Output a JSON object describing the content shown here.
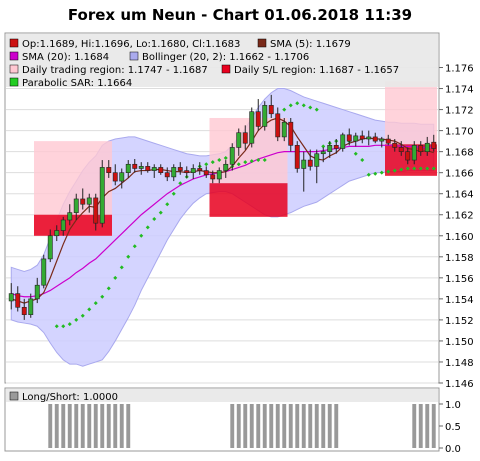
{
  "title": "Forex um Neun - Chart 01.06.2018 11:39",
  "colors": {
    "bollinger_fill": "#ccccff",
    "bollinger_edge": "#a9a9ee",
    "daily_region_fill": "#ffc8d2",
    "sl_region_fill": "#e8001e",
    "sma5": "#7a2a1a",
    "sma20": "#cc00cc",
    "parabolic_sar": "#22bb22",
    "candle_up": "#33aa33",
    "candle_down": "#cc1111",
    "longshort_bar": "#999999",
    "grid": "#dddddd"
  },
  "legend": {
    "ohlc": "Op:1.1689, Hi:1.1696, Lo:1.1680, Cl:1.1683",
    "sma5": "SMA (5): 1.1679",
    "sma20": "SMA (20): 1.1684",
    "bollinger": "Bollinger (20, 2): 1.1662 - 1.1706",
    "daily_region": "Daily trading region: 1.1747 - 1.1687",
    "daily_sl": "Daily S/L region: 1.1687 - 1.1657",
    "sar": "Parabolic SAR: 1.1664"
  },
  "lower_panel": {
    "legend": "Long/Short: 1.0000",
    "ticks": [
      "1.0",
      "0.5",
      "0.0"
    ]
  },
  "chart_data": {
    "type": "candlestick",
    "ylim": [
      1.146,
      1.177
    ],
    "yticks": [
      "1.146",
      "1.148",
      "1.150",
      "1.152",
      "1.154",
      "1.156",
      "1.158",
      "1.160",
      "1.162",
      "1.164",
      "1.166",
      "1.168",
      "1.170",
      "1.172",
      "1.174",
      "1.176"
    ],
    "candles": [
      [
        1.1538,
        1.1555,
        1.153,
        1.1545
      ],
      [
        1.1545,
        1.1552,
        1.1528,
        1.1532
      ],
      [
        1.1532,
        1.154,
        1.152,
        1.1525
      ],
      [
        1.1525,
        1.1545,
        1.1522,
        1.154
      ],
      [
        1.154,
        1.156,
        1.1536,
        1.1553
      ],
      [
        1.1553,
        1.1582,
        1.155,
        1.1578
      ],
      [
        1.1578,
        1.1606,
        1.1575,
        1.16
      ],
      [
        1.16,
        1.161,
        1.1595,
        1.1605
      ],
      [
        1.1605,
        1.1618,
        1.16,
        1.1615
      ],
      [
        1.1615,
        1.163,
        1.161,
        1.1622
      ],
      [
        1.1622,
        1.164,
        1.1615,
        1.1635
      ],
      [
        1.1635,
        1.1645,
        1.1625,
        1.163
      ],
      [
        1.163,
        1.164,
        1.1622,
        1.1636
      ],
      [
        1.1636,
        1.164,
        1.1605,
        1.1612
      ],
      [
        1.1612,
        1.1672,
        1.1608,
        1.1665
      ],
      [
        1.1665,
        1.1672,
        1.1655,
        1.166
      ],
      [
        1.166,
        1.1668,
        1.1648,
        1.1652
      ],
      [
        1.1652,
        1.1664,
        1.1645,
        1.166
      ],
      [
        1.166,
        1.1672,
        1.1655,
        1.1668
      ],
      [
        1.1668,
        1.1673,
        1.166,
        1.1664
      ],
      [
        1.1664,
        1.167,
        1.1658,
        1.1666
      ],
      [
        1.1666,
        1.167,
        1.166,
        1.1662
      ],
      [
        1.1662,
        1.1668,
        1.1655,
        1.1665
      ],
      [
        1.1665,
        1.1668,
        1.1658,
        1.166
      ],
      [
        1.166,
        1.1665,
        1.1652,
        1.1656
      ],
      [
        1.1656,
        1.1668,
        1.1652,
        1.1665
      ],
      [
        1.1665,
        1.167,
        1.1658,
        1.1662
      ],
      [
        1.1662,
        1.1666,
        1.1655,
        1.166
      ],
      [
        1.166,
        1.1668,
        1.1654,
        1.1664
      ],
      [
        1.1664,
        1.167,
        1.1658,
        1.1662
      ],
      [
        1.1662,
        1.1666,
        1.1655,
        1.1658
      ],
      [
        1.1658,
        1.1662,
        1.165,
        1.1654
      ],
      [
        1.1654,
        1.1665,
        1.165,
        1.1662
      ],
      [
        1.1662,
        1.1672,
        1.1655,
        1.1668
      ],
      [
        1.1668,
        1.1688,
        1.1662,
        1.1684
      ],
      [
        1.1684,
        1.1702,
        1.1676,
        1.1698
      ],
      [
        1.1698,
        1.1705,
        1.1682,
        1.1688
      ],
      [
        1.1688,
        1.1722,
        1.1684,
        1.1718
      ],
      [
        1.1718,
        1.173,
        1.17,
        1.1704
      ],
      [
        1.1704,
        1.1728,
        1.17,
        1.1724
      ],
      [
        1.1724,
        1.1734,
        1.1712,
        1.1716
      ],
      [
        1.1716,
        1.1722,
        1.169,
        1.1694
      ],
      [
        1.1694,
        1.1712,
        1.169,
        1.1708
      ],
      [
        1.1708,
        1.1712,
        1.168,
        1.1686
      ],
      [
        1.1686,
        1.169,
        1.166,
        1.1664
      ],
      [
        1.1664,
        1.168,
        1.1642,
        1.1672
      ],
      [
        1.1672,
        1.1682,
        1.1662,
        1.1666
      ],
      [
        1.1666,
        1.1682,
        1.165,
        1.1678
      ],
      [
        1.1678,
        1.1684,
        1.167,
        1.168
      ],
      [
        1.168,
        1.169,
        1.1674,
        1.1686
      ],
      [
        1.1686,
        1.1692,
        1.1678,
        1.1683
      ],
      [
        1.1683,
        1.1698,
        1.168,
        1.1696
      ],
      [
        1.1696,
        1.1702,
        1.1686,
        1.169
      ],
      [
        1.169,
        1.1698,
        1.1685,
        1.1695
      ],
      [
        1.1695,
        1.17,
        1.1688,
        1.1692
      ],
      [
        1.1692,
        1.17,
        1.1686,
        1.1694
      ],
      [
        1.1694,
        1.1698,
        1.1688,
        1.169
      ],
      [
        1.169,
        1.1694,
        1.1684,
        1.1692
      ],
      [
        1.1692,
        1.1696,
        1.1686,
        1.1688
      ],
      [
        1.1688,
        1.1692,
        1.168,
        1.1684
      ],
      [
        1.1684,
        1.169,
        1.1676,
        1.168
      ],
      [
        1.168,
        1.1684,
        1.1668,
        1.1672
      ],
      [
        1.1672,
        1.169,
        1.1668,
        1.1686
      ],
      [
        1.1686,
        1.169,
        1.1676,
        1.168
      ],
      [
        1.168,
        1.1694,
        1.1676,
        1.1688
      ],
      [
        1.1689,
        1.1696,
        1.168,
        1.1683
      ]
    ],
    "sma5": [
      1.154,
      1.1538,
      1.1536,
      1.1538,
      1.154,
      1.1546,
      1.156,
      1.1576,
      1.1592,
      1.1606,
      1.1615,
      1.1622,
      1.1628,
      1.1627,
      1.1636,
      1.1642,
      1.1645,
      1.165,
      1.1655,
      1.1661,
      1.1662,
      1.1662,
      1.1663,
      1.1663,
      1.1662,
      1.1661,
      1.1661,
      1.166,
      1.1661,
      1.1662,
      1.1661,
      1.166,
      1.166,
      1.1661,
      1.1666,
      1.1674,
      1.1681,
      1.169,
      1.17,
      1.1706,
      1.171,
      1.1712,
      1.1709,
      1.1704,
      1.1694,
      1.1685,
      1.1676,
      1.1673,
      1.1672,
      1.1676,
      1.1679,
      1.1685,
      1.1688,
      1.169,
      1.1692,
      1.1693,
      1.1692,
      1.1692,
      1.1691,
      1.169,
      1.1687,
      1.1683,
      1.1682,
      1.168,
      1.1681,
      1.1679
    ],
    "sma20": [
      1.1545,
      1.1543,
      1.1542,
      1.1542,
      1.1543,
      1.1545,
      1.1548,
      1.1552,
      1.1556,
      1.156,
      1.1565,
      1.1569,
      1.1574,
      1.1578,
      1.1584,
      1.159,
      1.1596,
      1.1602,
      1.1608,
      1.1614,
      1.162,
      1.1625,
      1.163,
      1.1635,
      1.164,
      1.1644,
      1.1648,
      1.1651,
      1.1654,
      1.1656,
      1.1658,
      1.1659,
      1.166,
      1.1661,
      1.1663,
      1.1665,
      1.1667,
      1.167,
      1.1673,
      1.1675,
      1.1677,
      1.1679,
      1.168,
      1.168,
      1.168,
      1.168,
      1.168,
      1.168,
      1.1681,
      1.1682,
      1.1683,
      1.1684,
      1.1685,
      1.1685,
      1.1685,
      1.1685,
      1.1686,
      1.1686,
      1.1686,
      1.1686,
      1.1685,
      1.1685,
      1.1685,
      1.1684,
      1.1684,
      1.1684
    ],
    "boll_upper": [
      1.157,
      1.1568,
      1.1566,
      1.1568,
      1.1572,
      1.1582,
      1.1598,
      1.1615,
      1.163,
      1.1642,
      1.1652,
      1.1662,
      1.167,
      1.1676,
      1.1686,
      1.169,
      1.1692,
      1.1693,
      1.1694,
      1.1694,
      1.1692,
      1.169,
      1.1688,
      1.1686,
      1.1684,
      1.1682,
      1.168,
      1.1678,
      1.1677,
      1.1676,
      1.1676,
      1.1677,
      1.1678,
      1.168,
      1.1686,
      1.1694,
      1.1702,
      1.1712,
      1.1722,
      1.173,
      1.1736,
      1.174,
      1.174,
      1.1738,
      1.1735,
      1.1732,
      1.173,
      1.1728,
      1.1726,
      1.1724,
      1.1722,
      1.172,
      1.1718,
      1.1716,
      1.1714,
      1.1712,
      1.171,
      1.1709,
      1.1708,
      1.1708,
      1.1707,
      1.1707,
      1.1707,
      1.1706,
      1.1706,
      1.1706
    ],
    "boll_lower": [
      1.152,
      1.1518,
      1.1517,
      1.1516,
      1.1514,
      1.1508,
      1.1498,
      1.1489,
      1.1482,
      1.1478,
      1.1478,
      1.1476,
      1.1478,
      1.148,
      1.1482,
      1.149,
      1.15,
      1.1511,
      1.1522,
      1.1534,
      1.1548,
      1.156,
      1.1572,
      1.1584,
      1.1596,
      1.1606,
      1.1616,
      1.1624,
      1.1631,
      1.1636,
      1.164,
      1.1641,
      1.1642,
      1.1642,
      1.164,
      1.1636,
      1.1632,
      1.1628,
      1.1624,
      1.162,
      1.1618,
      1.1618,
      1.162,
      1.1622,
      1.1625,
      1.1628,
      1.163,
      1.1632,
      1.1636,
      1.164,
      1.1644,
      1.1648,
      1.1652,
      1.1654,
      1.1656,
      1.1658,
      1.166,
      1.166,
      1.1661,
      1.1661,
      1.1661,
      1.1662,
      1.1662,
      1.1662,
      1.1662,
      1.1662
    ],
    "sar": [
      null,
      null,
      null,
      null,
      null,
      null,
      null,
      null,
      null,
      null,
      null,
      null,
      null,
      null,
      null,
      null,
      null,
      null,
      null,
      null,
      null,
      null,
      null,
      null,
      null,
      null,
      null,
      null,
      null,
      null,
      null,
      null,
      null,
      null,
      null,
      null,
      null,
      null,
      null,
      null,
      null,
      null,
      null,
      null,
      null,
      null,
      null,
      null,
      null,
      null,
      null,
      null,
      null,
      null,
      null,
      null,
      null,
      null,
      null,
      null,
      null,
      null,
      null,
      null,
      null,
      null
    ],
    "sar_points": [
      [
        7,
        1.1514
      ],
      [
        8,
        1.1514
      ],
      [
        9,
        1.1516
      ],
      [
        10,
        1.152
      ],
      [
        11,
        1.1524
      ],
      [
        12,
        1.153
      ],
      [
        13,
        1.1536
      ],
      [
        14,
        1.1542
      ],
      [
        15,
        1.155
      ],
      [
        16,
        1.156
      ],
      [
        17,
        1.157
      ],
      [
        18,
        1.158
      ],
      [
        19,
        1.159
      ],
      [
        20,
        1.16
      ],
      [
        21,
        1.1608
      ],
      [
        22,
        1.1616
      ],
      [
        23,
        1.1622
      ],
      [
        24,
        1.163
      ],
      [
        25,
        1.164
      ],
      [
        26,
        1.165
      ],
      [
        27,
        1.1656
      ],
      [
        28,
        1.1662
      ],
      [
        29,
        1.1666
      ],
      [
        30,
        1.1668
      ],
      [
        31,
        1.167
      ],
      [
        32,
        1.1672
      ],
      [
        33,
        1.1674
      ],
      [
        34,
        1.1666
      ],
      [
        35,
        1.1668
      ],
      [
        36,
        1.167
      ],
      [
        37,
        1.1671
      ],
      [
        38,
        1.1672
      ],
      [
        39,
        1.1672
      ],
      [
        41,
        1.1712
      ],
      [
        42,
        1.172
      ],
      [
        43,
        1.1724
      ],
      [
        44,
        1.1726
      ],
      [
        45,
        1.1724
      ],
      [
        46,
        1.1722
      ],
      [
        47,
        1.172
      ],
      [
        48,
        1.1685
      ],
      [
        49,
        1.1688
      ],
      [
        50,
        1.169
      ],
      [
        51,
        1.1692
      ],
      [
        52,
        1.169
      ],
      [
        53,
        1.1678
      ],
      [
        54,
        1.1672
      ],
      [
        55,
        1.1658
      ],
      [
        56,
        1.1659
      ],
      [
        57,
        1.166
      ],
      [
        58,
        1.1661
      ],
      [
        59,
        1.1662
      ],
      [
        60,
        1.1663
      ],
      [
        61,
        1.1664
      ],
      [
        62,
        1.1664
      ],
      [
        63,
        1.1664
      ],
      [
        64,
        1.1664
      ],
      [
        65,
        1.1664
      ]
    ],
    "daily_regions": [
      {
        "from": 4,
        "to": 15,
        "top": 1.169,
        "bottom": 1.16
      },
      {
        "from": 31,
        "to": 42,
        "top": 1.1712,
        "bottom": 1.165
      },
      {
        "from": 58,
        "to": 65,
        "top": 1.1747,
        "bottom": 1.1687
      }
    ],
    "sl_regions": [
      {
        "from": 4,
        "to": 15,
        "top": 1.162,
        "bottom": 1.16
      },
      {
        "from": 31,
        "to": 42,
        "top": 1.165,
        "bottom": 1.1618
      },
      {
        "from": 58,
        "to": 65,
        "top": 1.1687,
        "bottom": 1.1657
      }
    ],
    "long_short": [
      0,
      0,
      0,
      0,
      0,
      0,
      1,
      1,
      1,
      1,
      1,
      1,
      1,
      1,
      1,
      1,
      1,
      1,
      1,
      0,
      0,
      0,
      0,
      0,
      0,
      0,
      0,
      0,
      0,
      0,
      0,
      0,
      0,
      0,
      1,
      1,
      1,
      1,
      1,
      1,
      1,
      1,
      1,
      1,
      1,
      1,
      1,
      1,
      1,
      1,
      1,
      0,
      0,
      0,
      0,
      0,
      0,
      0,
      0,
      0,
      0,
      0,
      1,
      1,
      1,
      1
    ]
  }
}
